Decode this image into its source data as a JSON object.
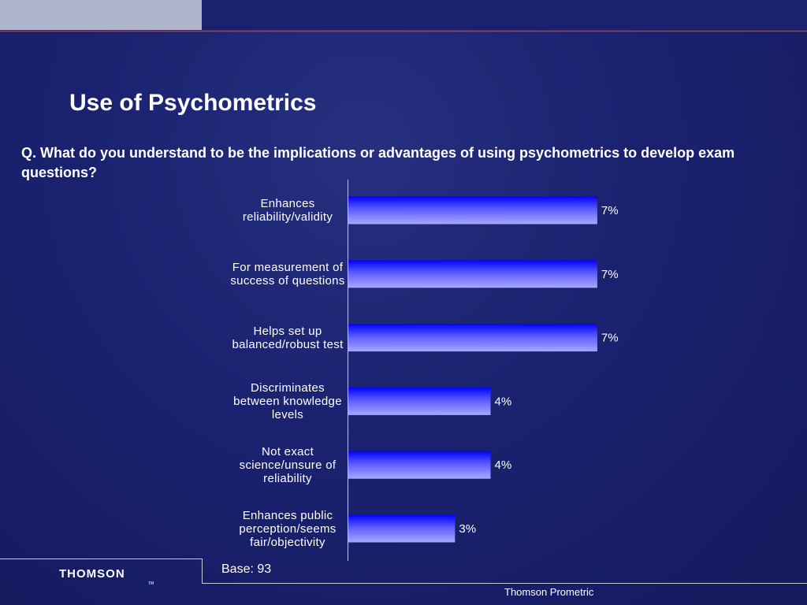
{
  "chart_data": {
    "type": "hbar",
    "title": "Use of Psychometrics",
    "subtitle": "Q. What do you understand to be the implications or advantages of using psychometrics to develop exam questions?",
    "categories": [
      "Enhances reliability/validity",
      "For measurement of success of questions",
      "Helps set up balanced/robust test",
      "Discriminates between knowledge levels",
      "Not exact science/unsure of reliability",
      "Enhances public perception/seems fair/objectivity"
    ],
    "values": [
      7,
      7,
      7,
      4,
      4,
      3
    ],
    "value_labels": [
      "7%",
      "7%",
      "7%",
      "4%",
      "4%",
      "3%"
    ],
    "xlim": [
      0,
      8
    ],
    "color": "#1010f0",
    "note": "Base: 93"
  },
  "footer": {
    "logo": "THOMSON",
    "trademark": "TM",
    "company": "Thomson Prometric"
  }
}
